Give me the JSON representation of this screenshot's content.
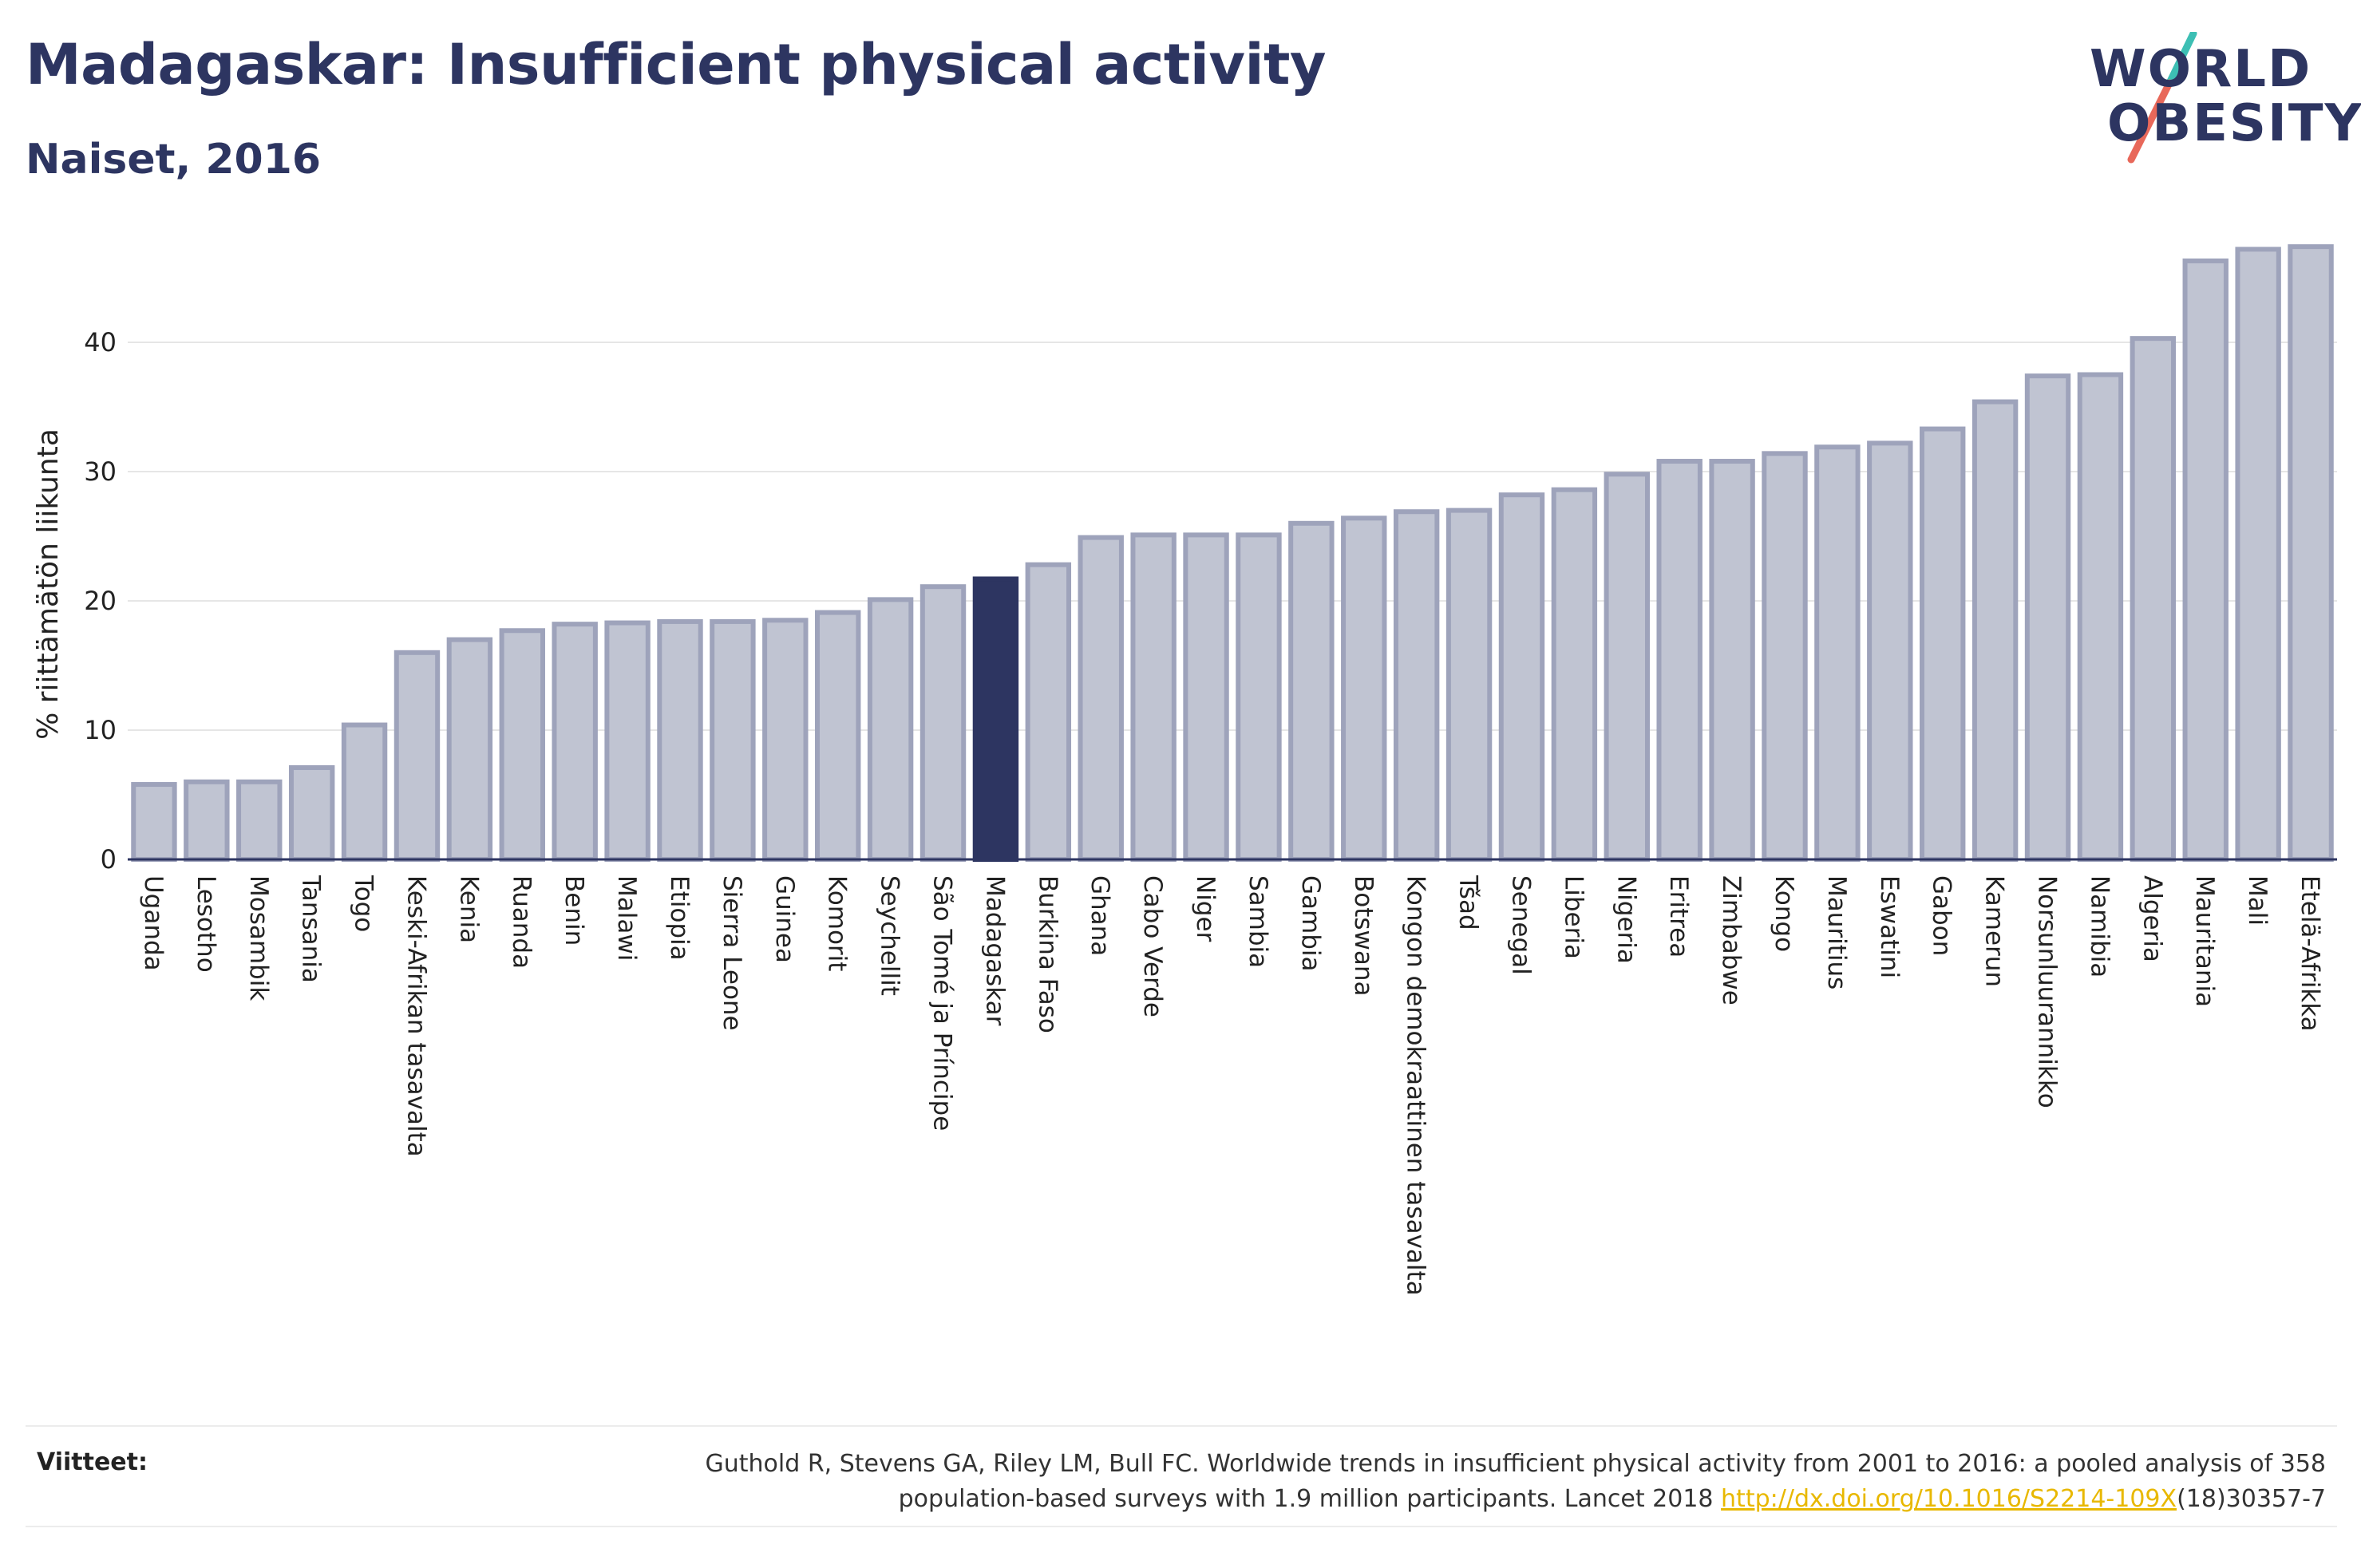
{
  "header": {
    "title": "Madagaskar: Insufficient physical activity",
    "subtitle": "Naiset, 2016"
  },
  "logo": {
    "line1": "WORLD",
    "line2": "OBESITY",
    "slash_colors": [
      "#3dbfb4",
      "#e8685a"
    ]
  },
  "chart_data": {
    "type": "bar",
    "ylabel": "% riittämätön liikunta",
    "ylim": [
      0,
      50
    ],
    "yticks": [
      0,
      10,
      20,
      30,
      40
    ],
    "grid": true,
    "highlight": "Madagaskar",
    "colors": {
      "bar": "#c0c4d2",
      "bar_border": "#9ea3bb",
      "highlight": "#2d3561"
    },
    "categories": [
      "Uganda",
      "Lesotho",
      "Mosambik",
      "Tansania",
      "Togo",
      "Keski-Afrikan tasavalta",
      "Kenia",
      "Ruanda",
      "Benin",
      "Malawi",
      "Etiopia",
      "Sierra Leone",
      "Guinea",
      "Komorit",
      "Seychellit",
      "São Tomé ja Príncipe",
      "Madagaskar",
      "Burkina Faso",
      "Ghana",
      "Cabo Verde",
      "Niger",
      "Sambia",
      "Gambia",
      "Botswana",
      "Kongon demokraattinen tasavalta",
      "Tšad",
      "Senegal",
      "Liberia",
      "Nigeria",
      "Eritrea",
      "Zimbabwe",
      "Kongo",
      "Mauritius",
      "Eswatini",
      "Gabon",
      "Kamerun",
      "Norsunluurannikko",
      "Namibia",
      "Algeria",
      "Mauritania",
      "Mali",
      "Etelä-Afrikka"
    ],
    "values": [
      5.8,
      6.0,
      6.0,
      7.1,
      10.4,
      16.0,
      17.0,
      17.7,
      18.2,
      18.3,
      18.4,
      18.4,
      18.5,
      19.1,
      20.1,
      21.1,
      21.7,
      22.8,
      24.9,
      25.1,
      25.1,
      25.1,
      26.0,
      26.4,
      26.9,
      27.0,
      28.2,
      28.6,
      29.8,
      30.8,
      30.8,
      31.4,
      31.9,
      32.2,
      33.3,
      35.4,
      37.4,
      37.5,
      40.3,
      46.3,
      47.2,
      47.4
    ]
  },
  "references": {
    "label": "Viitteet:",
    "text_line1": "Guthold R, Stevens GA, Riley LM, Bull FC. Worldwide trends in insufficient physical activity from 2001 to 2016: a pooled analysis of 358",
    "text_line2_before": "population-based surveys with 1.9 million participants. Lancet 2018 ",
    "link": "http://dx.doi.org/10.1016/S2214-109X",
    "text_line2_after": "(18)30357-7"
  }
}
